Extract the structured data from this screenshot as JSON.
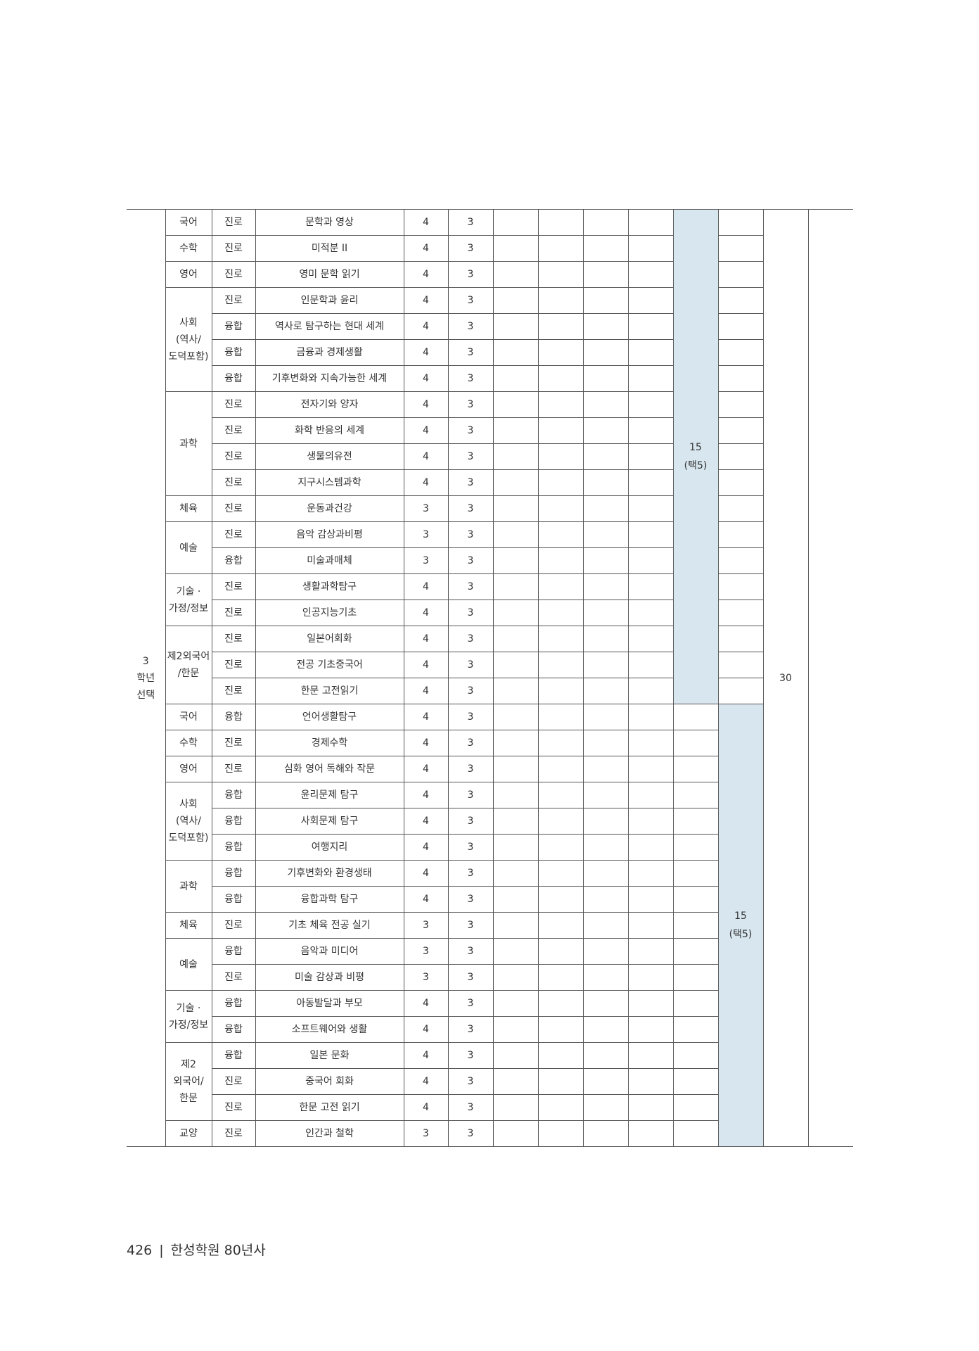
{
  "table": {
    "year_label": "3\n학년\n선택",
    "total": "30",
    "shade_color": "#d8e6ef",
    "blocks": [
      {
        "choice_credits": "15",
        "choice_note": "(택5)",
        "groups": [
          {
            "subject": "국어",
            "rows": [
              [
                "진로",
                "문학과 영상",
                "4",
                "3"
              ]
            ]
          },
          {
            "subject": "수학",
            "rows": [
              [
                "진로",
                "미적분 II",
                "4",
                "3"
              ]
            ]
          },
          {
            "subject": "영어",
            "rows": [
              [
                "진로",
                "영미 문학 읽기",
                "4",
                "3"
              ]
            ]
          },
          {
            "subject": "사회\n(역사/\n도덕포함)",
            "rows": [
              [
                "진로",
                "인문학과 윤리",
                "4",
                "3"
              ],
              [
                "융합",
                "역사로 탐구하는 현대 세계",
                "4",
                "3"
              ],
              [
                "융합",
                "금융과 경제생활",
                "4",
                "3"
              ],
              [
                "융합",
                "기후변화와 지속가능한 세계",
                "4",
                "3"
              ]
            ]
          },
          {
            "subject": "과학",
            "rows": [
              [
                "진로",
                "전자기와 양자",
                "4",
                "3"
              ],
              [
                "진로",
                "화학 반응의 세계",
                "4",
                "3"
              ],
              [
                "진로",
                "생물의유전",
                "4",
                "3"
              ],
              [
                "진로",
                "지구시스템과학",
                "4",
                "3"
              ]
            ]
          },
          {
            "subject": "체육",
            "rows": [
              [
                "진로",
                "운동과건강",
                "3",
                "3"
              ]
            ]
          },
          {
            "subject": "예술",
            "rows": [
              [
                "진로",
                "음악 감상과비평",
                "3",
                "3"
              ],
              [
                "융합",
                "미술과매체",
                "3",
                "3"
              ]
            ]
          },
          {
            "subject": "기술 ·\n가정/정보",
            "rows": [
              [
                "진로",
                "생활과학탐구",
                "4",
                "3"
              ],
              [
                "진로",
                "인공지능기초",
                "4",
                "3"
              ]
            ]
          },
          {
            "subject": "제2외국어\n/한문",
            "rows": [
              [
                "진로",
                "일본어회화",
                "4",
                "3"
              ],
              [
                "진로",
                "전공 기초중국어",
                "4",
                "3"
              ],
              [
                "진로",
                "한문 고전읽기",
                "4",
                "3"
              ]
            ]
          }
        ]
      },
      {
        "choice_credits": "15",
        "choice_note": "(택5)",
        "groups": [
          {
            "subject": "국어",
            "rows": [
              [
                "융합",
                "언어생활탐구",
                "4",
                "3"
              ]
            ]
          },
          {
            "subject": "수학",
            "rows": [
              [
                "진로",
                "경제수학",
                "4",
                "3"
              ]
            ]
          },
          {
            "subject": "영어",
            "rows": [
              [
                "진로",
                "심화 영어 독해와 작문",
                "4",
                "3"
              ]
            ]
          },
          {
            "subject": "사회\n(역사/\n도덕포함)",
            "rows": [
              [
                "융합",
                "윤리문제 탐구",
                "4",
                "3"
              ],
              [
                "융합",
                "사회문제 탐구",
                "4",
                "3"
              ],
              [
                "융합",
                "여행지리",
                "4",
                "3"
              ]
            ]
          },
          {
            "subject": "과학",
            "rows": [
              [
                "융합",
                "기후변화와 환경생태",
                "4",
                "3"
              ],
              [
                "융합",
                "융합과학 탐구",
                "4",
                "3"
              ]
            ]
          },
          {
            "subject": "체육",
            "rows": [
              [
                "진로",
                "기초 체육 전공 실기",
                "3",
                "3"
              ]
            ]
          },
          {
            "subject": "예술",
            "rows": [
              [
                "융합",
                "음악과 미디어",
                "3",
                "3"
              ],
              [
                "진로",
                "미술 감상과 비평",
                "3",
                "3"
              ]
            ]
          },
          {
            "subject": "기술 ·\n가정/정보",
            "rows": [
              [
                "융합",
                "아동발달과 부모",
                "4",
                "3"
              ],
              [
                "융합",
                "소프트웨어와 생활",
                "4",
                "3"
              ]
            ]
          },
          {
            "subject": "제2\n외국어/\n한문",
            "rows": [
              [
                "융합",
                "일본 문화",
                "4",
                "3"
              ],
              [
                "진로",
                "중국어 회화",
                "4",
                "3"
              ],
              [
                "진로",
                "한문 고전 읽기",
                "4",
                "3"
              ]
            ]
          },
          {
            "subject": "교양",
            "rows": [
              [
                "진로",
                "인간과 철학",
                "3",
                "3"
              ]
            ]
          }
        ]
      }
    ]
  },
  "footer": {
    "page_number": "426",
    "separator": "|",
    "book_title": "한성학원 80년사"
  }
}
